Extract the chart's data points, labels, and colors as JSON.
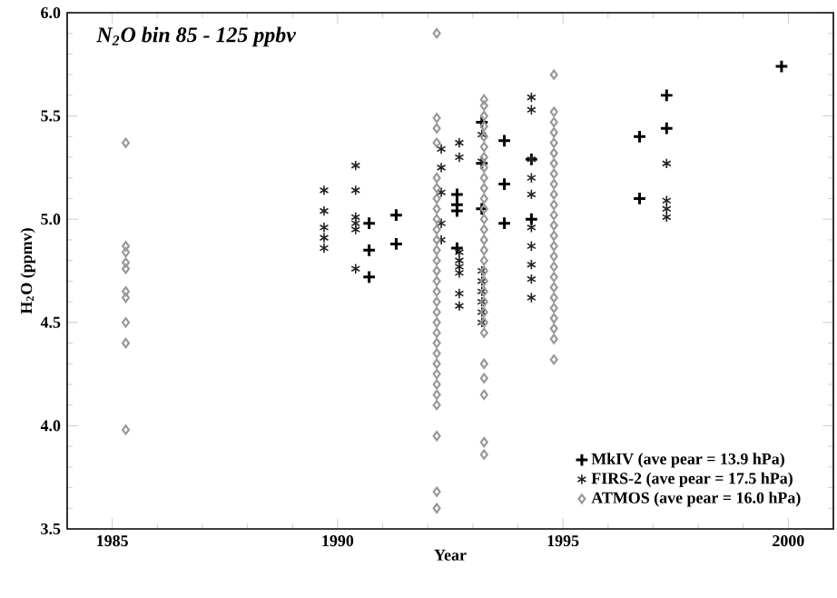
{
  "chart_data": {
    "type": "scatter",
    "title": "N$_{2}$O bin  85 - 125 ppbv",
    "xlabel": "Year",
    "ylabel": "H$_{2}$O (ppmv)",
    "xlim": [
      1984,
      2001
    ],
    "ylim": [
      3.5,
      6.0
    ],
    "xticks": [
      1985,
      1990,
      1995,
      2000
    ],
    "yticks": [
      {
        "value": 3.5,
        "label": "3.5"
      },
      {
        "value": 4.0,
        "label": "4.0"
      },
      {
        "value": 4.5,
        "label": "4.5"
      },
      {
        "value": 5.0,
        "label": "5.0"
      },
      {
        "value": 5.5,
        "label": "5.5"
      },
      {
        "value": 6.0,
        "label": "6.0"
      }
    ],
    "legend": "bottom right",
    "grid": false,
    "series": [
      {
        "name": "MkIV (ave pear = 13.9 hPa)",
        "color": "#000000",
        "marker": "cross",
        "x": [
          1990.7,
          1990.7,
          1990.7,
          1991.3,
          1991.3,
          1992.65,
          1992.65,
          1992.65,
          1992.65,
          1993.2,
          1993.2,
          1993.2,
          1993.7,
          1993.7,
          1993.7,
          1994.3,
          1994.3,
          1996.7,
          1996.7,
          1997.3,
          1997.3,
          1999.85
        ],
        "values": [
          4.98,
          4.85,
          4.72,
          5.02,
          4.88,
          5.12,
          5.07,
          5.04,
          4.86,
          5.47,
          5.27,
          5.05,
          5.38,
          5.17,
          4.98,
          5.29,
          5.0,
          5.4,
          5.1,
          5.6,
          5.44,
          5.74
        ]
      },
      {
        "name": "FIRS-2 (ave pear = 17.5 hPa)",
        "color": "#222222",
        "x": [
          1989.7,
          1989.7,
          1989.7,
          1989.7,
          1989.7,
          1990.4,
          1990.4,
          1990.4,
          1990.4,
          1990.4,
          1990.4,
          1992.3,
          1992.3,
          1992.3,
          1992.3,
          1992.3,
          1992.7,
          1992.7,
          1992.7,
          1992.7,
          1992.7,
          1992.7,
          1992.7,
          1992.7,
          1993.2,
          1993.2,
          1993.2,
          1993.2,
          1993.2,
          1993.2,
          1993.2,
          1993.2,
          1994.3,
          1994.3,
          1994.3,
          1994.3,
          1994.3,
          1994.3,
          1994.3,
          1994.3,
          1994.3,
          1994.3,
          1997.3,
          1997.3,
          1997.3,
          1997.3
        ],
        "values": [
          5.14,
          5.04,
          4.96,
          4.91,
          4.86,
          5.26,
          5.14,
          5.01,
          4.98,
          4.95,
          4.76,
          5.34,
          5.25,
          5.13,
          4.98,
          4.9,
          5.37,
          5.3,
          4.84,
          4.8,
          4.77,
          4.74,
          4.64,
          4.58,
          5.41,
          5.28,
          4.75,
          4.7,
          4.65,
          4.6,
          4.55,
          4.5,
          5.59,
          5.53,
          5.29,
          5.2,
          5.12,
          4.96,
          4.87,
          4.78,
          4.71,
          4.62,
          5.27,
          5.09,
          5.05,
          5.01
        ]
      },
      {
        "name": "ATMOS (ave pear = 16.0 hPa)",
        "color": "#999999",
        "marker": "diamond",
        "x": [
          1985.3,
          1985.3,
          1985.3,
          1985.3,
          1985.3,
          1985.3,
          1985.3,
          1985.3,
          1985.3,
          1985.3,
          1992.2,
          1992.2,
          1992.2,
          1992.2,
          1992.2,
          1992.2,
          1992.2,
          1992.2,
          1992.2,
          1992.2,
          1992.2,
          1992.2,
          1992.2,
          1992.2,
          1992.2,
          1992.2,
          1992.2,
          1992.2,
          1992.2,
          1992.2,
          1992.2,
          1992.2,
          1992.2,
          1992.2,
          1992.2,
          1992.2,
          1992.2,
          1992.2,
          1992.2,
          1992.2,
          1993.25,
          1993.25,
          1993.25,
          1993.25,
          1993.25,
          1993.25,
          1993.25,
          1993.25,
          1993.25,
          1993.25,
          1993.25,
          1993.25,
          1993.25,
          1993.25,
          1993.25,
          1993.25,
          1993.25,
          1993.25,
          1993.25,
          1993.25,
          1993.25,
          1993.25,
          1993.25,
          1993.25,
          1993.25,
          1993.25,
          1993.25,
          1993.25,
          1993.25,
          1994.8,
          1994.8,
          1994.8,
          1994.8,
          1994.8,
          1994.8,
          1994.8,
          1994.8,
          1994.8,
          1994.8,
          1994.8,
          1994.8,
          1994.8,
          1994.8,
          1994.8,
          1994.8,
          1994.8,
          1994.8,
          1994.8,
          1994.8,
          1994.8,
          1994.8,
          1994.8,
          1994.8,
          1994.8
        ],
        "values": [
          5.37,
          4.87,
          4.84,
          4.79,
          4.76,
          4.65,
          4.62,
          4.5,
          4.4,
          3.98,
          5.9,
          5.49,
          5.44,
          5.37,
          5.2,
          5.15,
          5.1,
          5.05,
          5.0,
          4.95,
          4.9,
          4.85,
          4.8,
          4.75,
          4.7,
          4.65,
          4.6,
          4.55,
          4.5,
          4.45,
          4.4,
          4.35,
          4.3,
          4.25,
          4.2,
          4.15,
          4.1,
          3.95,
          3.68,
          3.6,
          5.58,
          5.55,
          5.5,
          5.45,
          5.4,
          5.35,
          5.3,
          5.25,
          5.2,
          5.15,
          5.1,
          5.05,
          5.0,
          4.95,
          4.9,
          4.85,
          4.8,
          4.75,
          4.7,
          4.65,
          4.6,
          4.55,
          4.5,
          4.45,
          4.3,
          4.23,
          4.15,
          3.92,
          3.86,
          5.7,
          5.52,
          5.47,
          5.42,
          5.37,
          5.32,
          5.27,
          5.22,
          5.17,
          5.12,
          5.07,
          5.02,
          4.97,
          4.92,
          4.87,
          4.82,
          4.77,
          4.72,
          4.67,
          4.62,
          4.57,
          4.52,
          4.47,
          4.42,
          4.32
        ]
      }
    ]
  }
}
